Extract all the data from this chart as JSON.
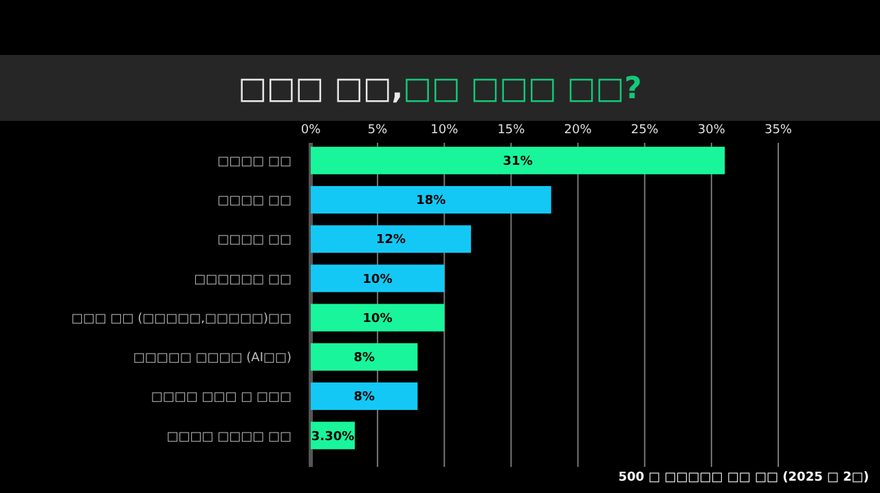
{
  "chart_data": {
    "type": "bar",
    "orientation": "horizontal",
    "title": "□□□ □□,□□ □□□ □□?",
    "categories": [
      "□□□□ □□",
      "□□□□ □□",
      "□□□□ □□",
      "□□□□□□ □□",
      "□□□ □□ (□□□□□,□□□□□)□□",
      "□□□□□ □□□□ (AI□□)",
      "□□□□ □□□ □ □□□",
      "□□□□ □□□□ □□"
    ],
    "values": [
      31,
      18,
      12,
      10,
      10,
      8,
      8,
      3.3
    ],
    "value_labels": [
      "31%",
      "18%",
      "12%",
      "10%",
      "10%",
      "8%",
      "8%",
      "3.30%"
    ],
    "colors": [
      "#19f59a",
      "#14c8f5",
      "#14c8f5",
      "#14c8f5",
      "#19f59a",
      "#19f59a",
      "#14c8f5",
      "#19f59a"
    ],
    "xlim": [
      0,
      35
    ],
    "xticks": [
      {
        "value": 0,
        "label": "0%"
      },
      {
        "value": 5,
        "label": "5%"
      },
      {
        "value": 10,
        "label": "10%"
      },
      {
        "value": 15,
        "label": "15%"
      },
      {
        "value": 20,
        "label": "20%"
      },
      {
        "value": 25,
        "label": "25%"
      },
      {
        "value": 30,
        "label": "30%"
      },
      {
        "value": 35,
        "label": "35%"
      }
    ],
    "grid": "x",
    "annotations": [
      "500 □ □□□□□  □□ □□ (2025 □ 2□)"
    ]
  }
}
